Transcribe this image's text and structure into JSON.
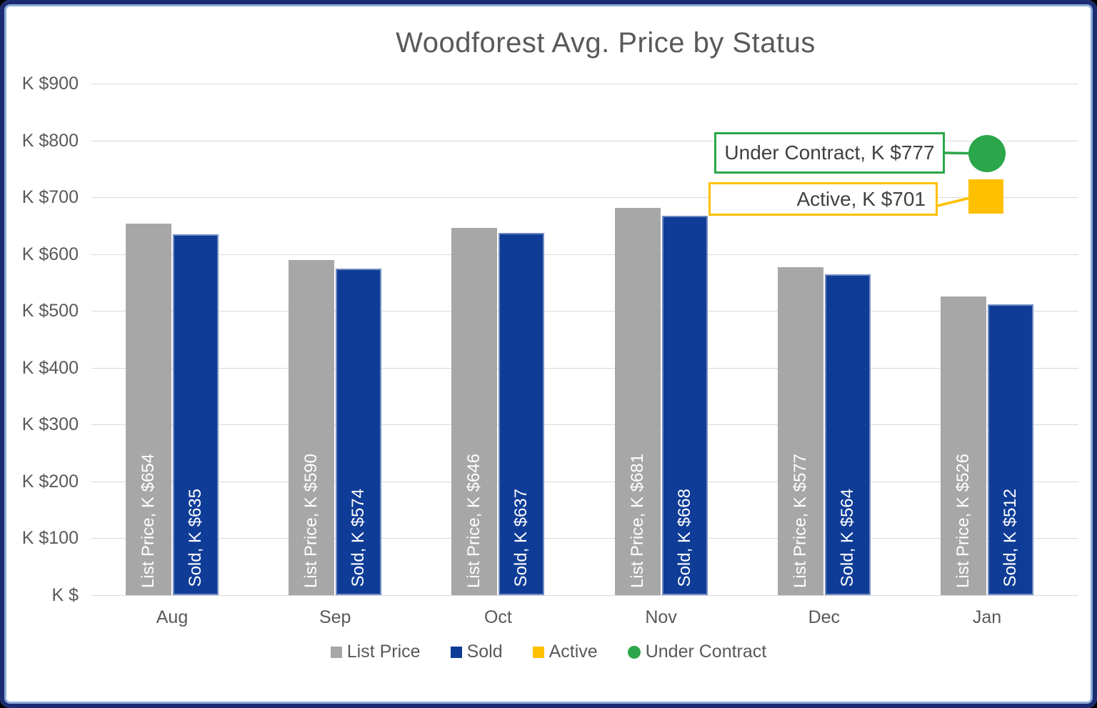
{
  "page": {
    "background": "#000000"
  },
  "frame": {
    "outer_border_color": "#1B2C73",
    "inner_line_color": "#8FAEDC",
    "fill": "#FFFFFF"
  },
  "chart_data": {
    "type": "bar",
    "title": "Woodforest Avg. Price by Status",
    "title_color": "#595959",
    "categories": [
      "Aug",
      "Sep",
      "Oct",
      "Nov",
      "Dec",
      "Jan"
    ],
    "series": [
      {
        "name": "List Price",
        "render": "bar",
        "color": "#A7A7A7",
        "values": [
          654,
          590,
          646,
          681,
          577,
          526
        ],
        "bar_labels": [
          "List Price, K $654",
          "List Price, K $590",
          "List Price, K $646",
          "List Price, K $681",
          "List Price, K $577",
          "List Price, K $526"
        ]
      },
      {
        "name": "Sold",
        "render": "bar",
        "color": "#0F3C96",
        "values": [
          635,
          574,
          637,
          668,
          564,
          512
        ],
        "bar_labels": [
          "Sold, K $635",
          "Sold, K $574",
          "Sold, K $637",
          "Sold, K $668",
          "Sold, K $564",
          "Sold, K $512"
        ]
      },
      {
        "name": "Active",
        "render": "point",
        "shape": "square",
        "color": "#FFC000",
        "category": "Jan",
        "value": 701,
        "callout_text": "Active, K $701"
      },
      {
        "name": "Under Contract",
        "render": "point",
        "shape": "circle",
        "color": "#2BA64A",
        "category": "Jan",
        "value": 777,
        "callout_text": "Under Contract, K $777"
      }
    ],
    "ylim": [
      0,
      900
    ],
    "y_ticks": [
      {
        "value": 900,
        "label": "K $900"
      },
      {
        "value": 800,
        "label": "K $800"
      },
      {
        "value": 700,
        "label": "K $700"
      },
      {
        "value": 600,
        "label": "K $600"
      },
      {
        "value": 500,
        "label": "K $500"
      },
      {
        "value": 400,
        "label": "K $400"
      },
      {
        "value": 300,
        "label": "K $300"
      },
      {
        "value": 200,
        "label": "K $200"
      },
      {
        "value": 100,
        "label": "K $100"
      },
      {
        "value": 0,
        "label": "K $"
      }
    ],
    "grid": true,
    "gridline_color": "#D9D9D9",
    "axis_text_color": "#595959",
    "bar_label_color": "#FFFFFF",
    "legend_position": "bottom",
    "legend": [
      {
        "label": "List Price",
        "marker": "square",
        "color": "#A7A7A7"
      },
      {
        "label": "Sold",
        "marker": "square",
        "color": "#0F3C96"
      },
      {
        "label": "Active",
        "marker": "square",
        "color": "#FFC000"
      },
      {
        "label": "Under Contract",
        "marker": "circle",
        "color": "#2BA64A"
      }
    ]
  }
}
